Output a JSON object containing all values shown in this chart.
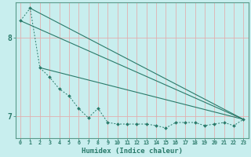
{
  "xlabel": "Humidex (Indice chaleur)",
  "bg_color": "#c8eeee",
  "grid_color": "#e0b0b0",
  "line_color": "#2a7a6a",
  "x_min": -0.5,
  "x_max": 23.5,
  "y_min": 6.72,
  "y_max": 8.45,
  "ytick_vals": [
    7.0,
    8.0
  ],
  "ytick_labels": [
    "7",
    "8"
  ],
  "xtick_vals": [
    0,
    1,
    2,
    3,
    4,
    5,
    6,
    7,
    8,
    9,
    10,
    11,
    12,
    13,
    14,
    15,
    16,
    17,
    18,
    19,
    20,
    21,
    22,
    23
  ],
  "zigzag_x": [
    0,
    1,
    2,
    3,
    4,
    5,
    6,
    7,
    8,
    9,
    10,
    11,
    12,
    13,
    14,
    15,
    16,
    17,
    18,
    19,
    20,
    21,
    22,
    23
  ],
  "zigzag_y": [
    8.22,
    8.38,
    7.62,
    7.5,
    7.35,
    7.26,
    7.1,
    6.98,
    7.1,
    6.92,
    6.9,
    6.9,
    6.9,
    6.9,
    6.88,
    6.85,
    6.92,
    6.92,
    6.92,
    6.88,
    6.9,
    6.92,
    6.88,
    6.96
  ],
  "line_a": [
    [
      0,
      8.22
    ],
    [
      23,
      6.96
    ]
  ],
  "line_b": [
    [
      1,
      8.38
    ],
    [
      23,
      6.96
    ]
  ],
  "line_c": [
    [
      2,
      7.62
    ],
    [
      23,
      6.96
    ]
  ]
}
